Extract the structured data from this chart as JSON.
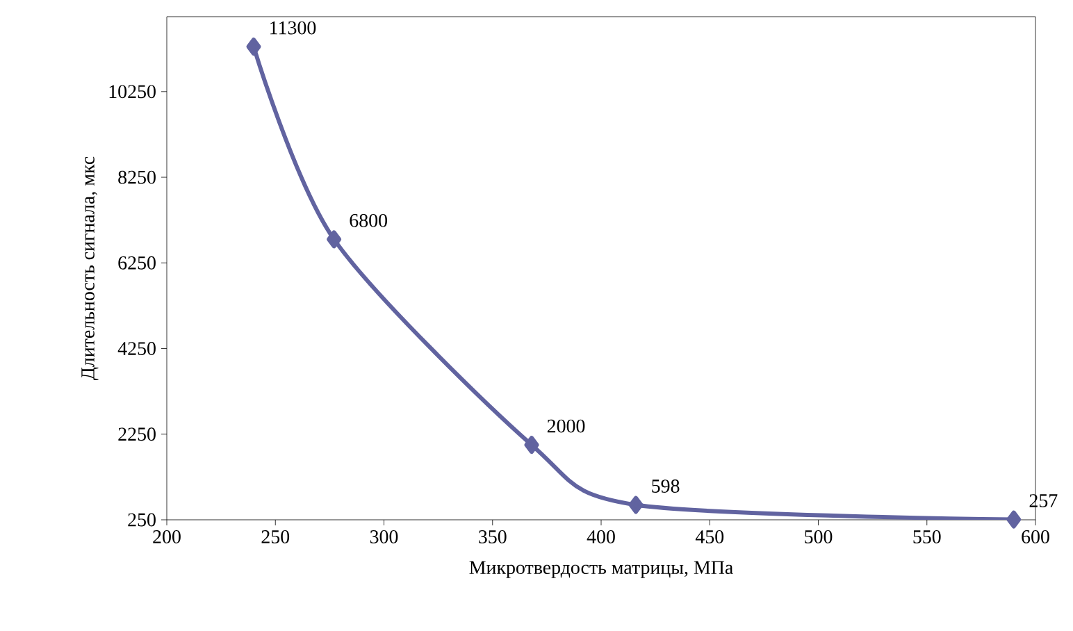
{
  "chart_data": {
    "type": "line",
    "xlabel": "Микротвердость матрицы, МПа",
    "ylabel": "Длительность сигнала, мкс",
    "x": [
      240,
      277,
      368,
      416,
      590
    ],
    "series": [
      {
        "color": "#6163a0",
        "values": [
          11300,
          6800,
          2000,
          598,
          257
        ]
      }
    ],
    "xlim": [
      200,
      600
    ],
    "xticks": [
      200,
      250,
      300,
      350,
      400,
      450,
      500,
      550,
      600
    ],
    "ylim": [
      250,
      12000
    ],
    "yticks": [
      250,
      2250,
      4250,
      6250,
      8250,
      10250
    ],
    "marker": "diamond",
    "data_labels": true,
    "grid": false
  }
}
